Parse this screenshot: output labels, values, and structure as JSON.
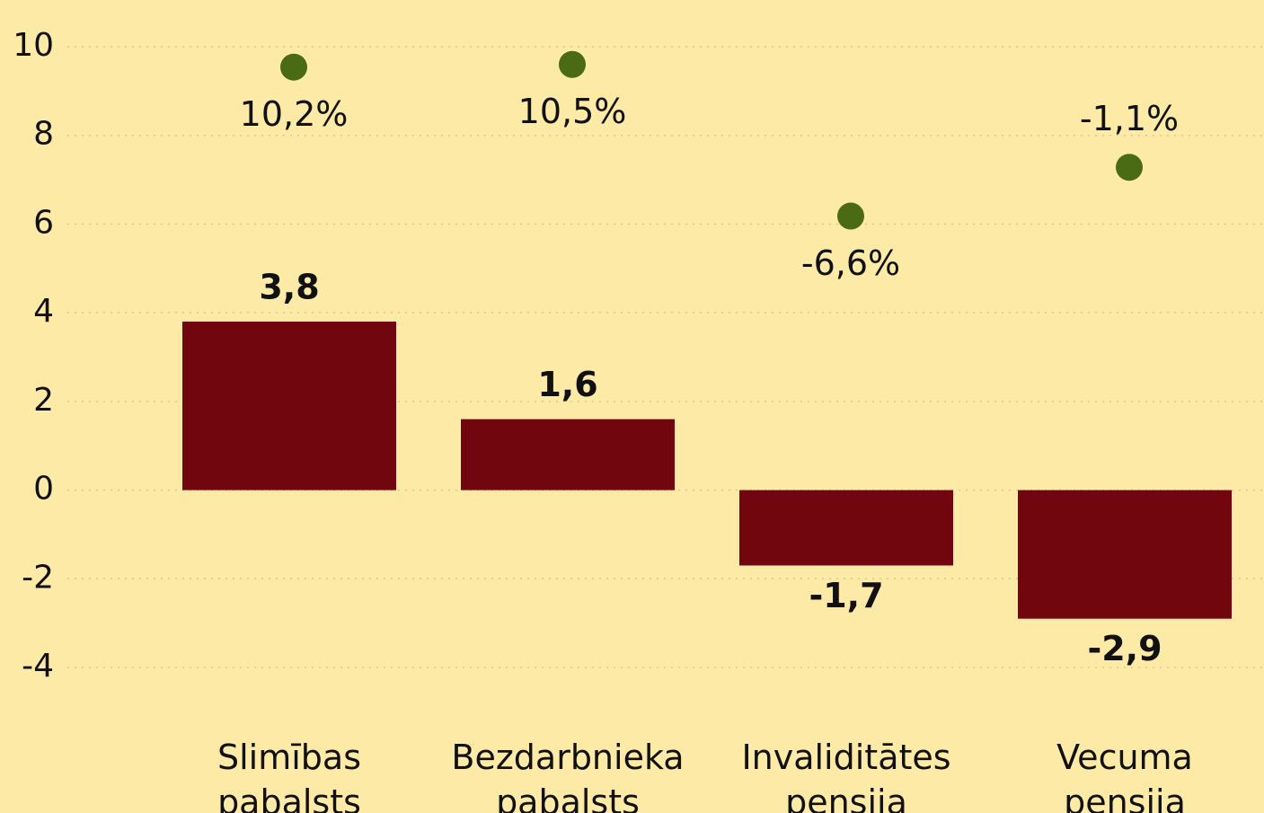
{
  "chart_data": {
    "type": "bar",
    "categories": [
      "Slimības pabalsts",
      "Bezdarbnieka pabalsts",
      "Invaliditātes pensija",
      "Vecuma pensija"
    ],
    "series": [
      {
        "type": "bar",
        "color": "#72060f",
        "values": [
          3.8,
          1.6,
          -1.7,
          -2.9
        ],
        "value_labels": [
          "3,8",
          "1,6",
          "-1,7",
          "-2,9"
        ]
      },
      {
        "type": "scatter",
        "axis": "y2",
        "color": "#4b6a14",
        "values": [
          10.2,
          10.5,
          -6.6,
          -1.1
        ],
        "value_labels": [
          "10,2%",
          "10,5%",
          "-6,6%",
          "-1,1%"
        ]
      }
    ],
    "ylim": [
      -4,
      10
    ],
    "yticks": [
      -4,
      -2,
      0,
      2,
      4,
      6,
      8,
      10
    ],
    "y2lim": [
      -57.5,
      12.5
    ],
    "grid": true
  }
}
